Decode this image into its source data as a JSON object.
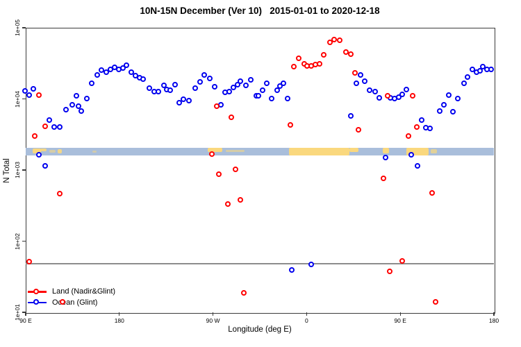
{
  "title": "10N-15N December (Ver 10)   2015-01-01 to 2020-12-18",
  "axes": {
    "x": {
      "label": "Longitude (deg E)",
      "min": 90,
      "max": 540,
      "ticks": [
        {
          "lon": 90,
          "label": "90 E"
        },
        {
          "lon": 180,
          "label": "180"
        },
        {
          "lon": 270,
          "label": "90 W"
        },
        {
          "lon": 360,
          "label": "0"
        },
        {
          "lon": 450,
          "label": "90 E"
        },
        {
          "lon": 540,
          "label": "180"
        }
      ]
    },
    "y": {
      "label": "N Total",
      "log_min": 1,
      "log_max": 5,
      "ticks": [
        {
          "value": 100000,
          "label": "1e+05"
        },
        {
          "value": 10000,
          "label": "1e+04"
        },
        {
          "value": 1000,
          "label": "1e+03"
        },
        {
          "value": 100,
          "label": "1e+02"
        },
        {
          "value": 10,
          "label": "1e+01"
        }
      ]
    }
  },
  "legend": {
    "items": [
      {
        "label": "Land (Nadir&Glint)",
        "color": "#ff0000"
      },
      {
        "label": "Ocean (Glint)",
        "color": "#0000ee"
      }
    ]
  },
  "chart_data": {
    "type": "scatter",
    "title": "10N-15N December (Ver 10)   2015-01-01 to 2020-12-18",
    "xlabel": "Longitude (deg E)",
    "ylabel": "N Total",
    "x_axis_note": "longitude axis runs 90E eastward through 180, 90W, 0, 90E to 180; lon values above 180 wrap around the globe",
    "y_scale": "log10, range 1e+01 to 1e+05",
    "reference_line": {
      "value": 48,
      "color": "#8c8c8c"
    },
    "map_strip": {
      "description": "world coastline band for 10N-15N drawn across the plot",
      "top_value": 2050,
      "bottom_value": 1600,
      "ocean_color": "#a9bedb",
      "land_color": "#fad87e",
      "land_patches": [
        {
          "l": 97,
          "r": 105,
          "t": 0.05,
          "h": 0.65,
          "o": 1
        },
        {
          "l": 104,
          "r": 110,
          "t": 0.05,
          "h": 0.4,
          "o": 0.9
        },
        {
          "l": 113,
          "r": 119,
          "t": 0.3,
          "h": 0.3,
          "o": 0.55
        },
        {
          "l": 121,
          "r": 125,
          "t": 0.15,
          "h": 0.55,
          "o": 0.9
        },
        {
          "l": 154,
          "r": 158,
          "t": 0.35,
          "h": 0.25,
          "o": 0.5
        },
        {
          "l": 265,
          "r": 279,
          "t": 0.0,
          "h": 0.55,
          "o": 1
        },
        {
          "l": 282,
          "r": 300,
          "t": 0.25,
          "h": 0.3,
          "o": 0.55
        },
        {
          "l": 343,
          "r": 401,
          "t": 0.0,
          "h": 1.0,
          "o": 1
        },
        {
          "l": 401,
          "r": 410,
          "t": 0.0,
          "h": 0.55,
          "o": 1
        },
        {
          "l": 433,
          "r": 439,
          "t": 0.0,
          "h": 0.75,
          "o": 1
        },
        {
          "l": 456,
          "r": 477,
          "t": 0.0,
          "h": 0.95,
          "o": 1
        },
        {
          "l": 479,
          "r": 485,
          "t": 0.2,
          "h": 0.55,
          "o": 0.7
        }
      ]
    },
    "series": [
      {
        "name": "Land (Nadir&Glint)",
        "color": "#ff0000",
        "points": [
          [
            94,
            51.1
          ],
          [
            99,
            2950
          ],
          [
            103,
            11200
          ],
          [
            109,
            4060
          ],
          [
            123,
            462
          ],
          [
            126,
            13.7
          ],
          [
            269,
            1640
          ],
          [
            274,
            7800
          ],
          [
            276,
            870
          ],
          [
            285,
            327
          ],
          [
            288,
            5460
          ],
          [
            292,
            1010
          ],
          [
            297,
            378
          ],
          [
            300,
            18.7
          ],
          [
            345,
            4220
          ],
          [
            348,
            28300
          ],
          [
            353,
            37000
          ],
          [
            358,
            30500
          ],
          [
            361,
            29000
          ],
          [
            365,
            29000
          ],
          [
            369,
            30100
          ],
          [
            373,
            30500
          ],
          [
            377,
            41100
          ],
          [
            383,
            61000
          ],
          [
            387,
            67000
          ],
          [
            392,
            65500
          ],
          [
            398,
            45200
          ],
          [
            403,
            42000
          ],
          [
            407,
            22700
          ],
          [
            410,
            3630
          ],
          [
            434,
            748
          ],
          [
            438,
            10800
          ],
          [
            440,
            37.2
          ],
          [
            452,
            51.9
          ],
          [
            458,
            2970
          ],
          [
            462,
            11000
          ],
          [
            466,
            4000
          ],
          [
            481,
            467
          ],
          [
            484,
            13.7
          ]
        ]
      },
      {
        "name": "Ocean (Glint)",
        "color": "#0000ee",
        "points": [
          [
            90,
            12900
          ],
          [
            94,
            11200
          ],
          [
            98,
            13700
          ],
          [
            103,
            1610
          ],
          [
            109,
            1130
          ],
          [
            113,
            4920
          ],
          [
            118,
            4000
          ],
          [
            123,
            4000
          ],
          [
            129,
            6900
          ],
          [
            135,
            8100
          ],
          [
            139,
            10800
          ],
          [
            141,
            7750
          ],
          [
            144,
            6630
          ],
          [
            149,
            10000
          ],
          [
            154,
            16400
          ],
          [
            159,
            21400
          ],
          [
            163,
            25000
          ],
          [
            168,
            23400
          ],
          [
            172,
            25900
          ],
          [
            176,
            27500
          ],
          [
            180,
            25900
          ],
          [
            184,
            26700
          ],
          [
            187,
            29400
          ],
          [
            192,
            23200
          ],
          [
            196,
            20800
          ],
          [
            200,
            19700
          ],
          [
            203,
            18800
          ],
          [
            209,
            14000
          ],
          [
            214,
            12600
          ],
          [
            218,
            12600
          ],
          [
            223,
            15400
          ],
          [
            226,
            13300
          ],
          [
            229,
            13100
          ],
          [
            234,
            15700
          ],
          [
            238,
            8650
          ],
          [
            242,
            9730
          ],
          [
            247,
            9310
          ],
          [
            253,
            14100
          ],
          [
            258,
            17300
          ],
          [
            262,
            21400
          ],
          [
            267,
            19000
          ],
          [
            272,
            14700
          ],
          [
            278,
            8220
          ],
          [
            282,
            12200
          ],
          [
            286,
            12600
          ],
          [
            290,
            14200
          ],
          [
            294,
            15500
          ],
          [
            297,
            17400
          ],
          [
            302,
            15200
          ],
          [
            307,
            18200
          ],
          [
            312,
            10800
          ],
          [
            314,
            11000
          ],
          [
            318,
            13100
          ],
          [
            322,
            16400
          ],
          [
            327,
            10000
          ],
          [
            332,
            13100
          ],
          [
            335,
            14900
          ],
          [
            338,
            16400
          ],
          [
            342,
            10000
          ],
          [
            346,
            38.6
          ],
          [
            365,
            46.4
          ],
          [
            403,
            5670
          ],
          [
            408,
            16400
          ],
          [
            412,
            21500
          ],
          [
            416,
            17400
          ],
          [
            421,
            13100
          ],
          [
            426,
            12600
          ],
          [
            430,
            10300
          ],
          [
            436,
            1490
          ],
          [
            441,
            10100
          ],
          [
            445,
            9890
          ],
          [
            449,
            10500
          ],
          [
            452,
            11300
          ],
          [
            456,
            13300
          ],
          [
            461,
            1610
          ],
          [
            467,
            1140
          ],
          [
            471,
            5000
          ],
          [
            475,
            3910
          ],
          [
            479,
            3830
          ],
          [
            488,
            6730
          ],
          [
            492,
            8220
          ],
          [
            497,
            11200
          ],
          [
            501,
            6580
          ],
          [
            506,
            10000
          ],
          [
            512,
            16400
          ],
          [
            515,
            20000
          ],
          [
            520,
            25600
          ],
          [
            524,
            23200
          ],
          [
            527,
            24500
          ],
          [
            530,
            28300
          ],
          [
            534,
            25900
          ],
          [
            538,
            25600
          ]
        ]
      }
    ]
  }
}
